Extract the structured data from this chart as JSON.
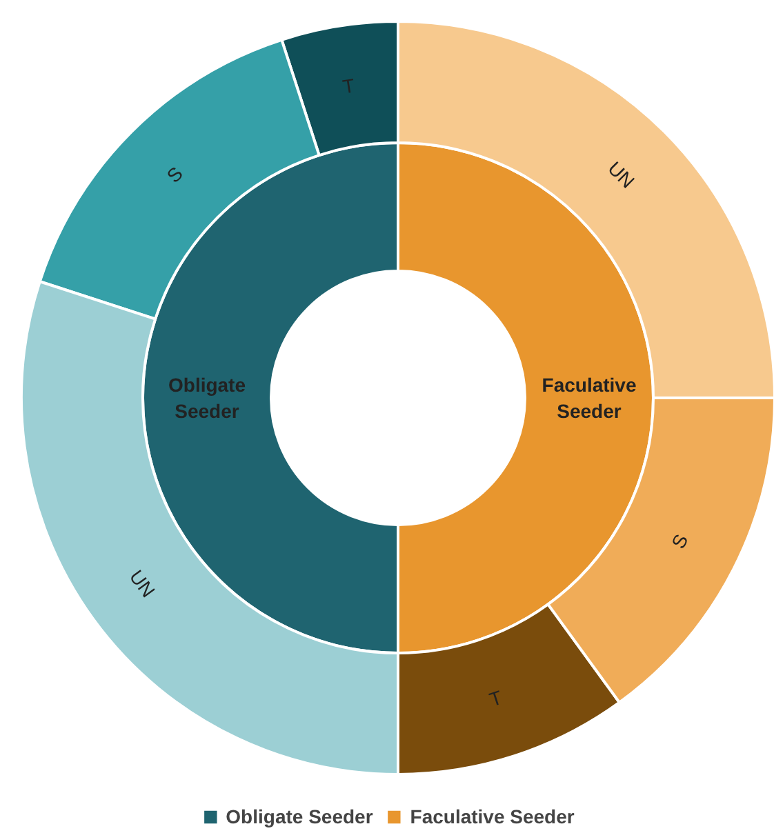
{
  "chart_data": {
    "type": "donut",
    "categories": [
      "Obligate Seeder",
      null,
      null,
      "Faculative Seeder",
      null,
      null
    ],
    "series": [
      {
        "values": [
          50,
          null,
          null,
          50,
          null,
          null
        ],
        "colors": [
          "#1f6470",
          null,
          null,
          "#e8962e",
          null,
          null
        ]
      },
      {
        "values": [
          5,
          15,
          30,
          10,
          15,
          25
        ],
        "colors": [
          "#0f4f58",
          "#35a0a8",
          "#9ccfd4",
          "#7a4c0c",
          "#f0ac58",
          "#f7c98e"
        ],
        "value_labels": [
          "T",
          "S",
          "UN",
          "T",
          "S",
          "UN"
        ]
      }
    ],
    "legend": "bottom"
  }
}
